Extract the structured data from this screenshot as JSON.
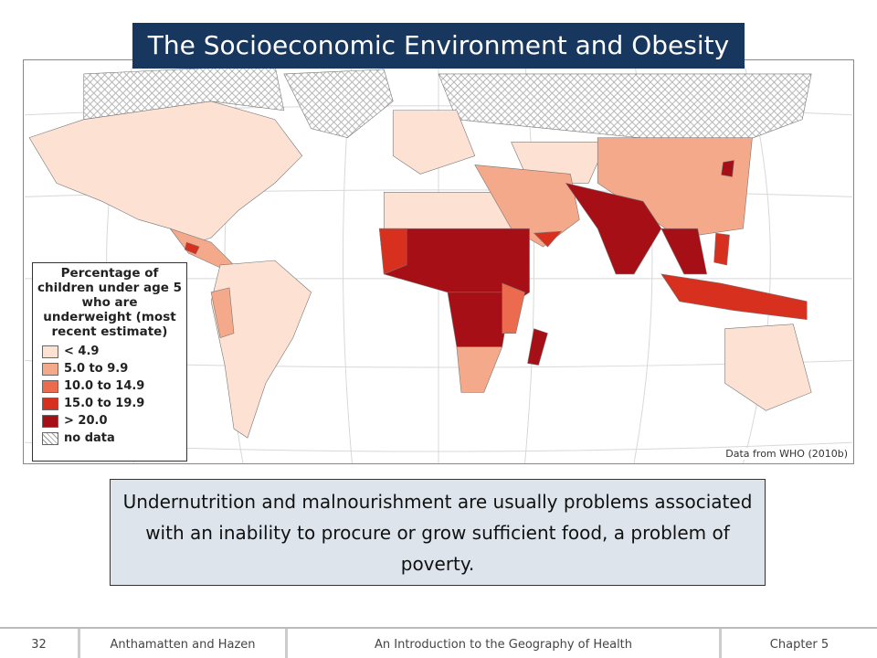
{
  "header": {
    "title": "The Socioeconomic Environment and Obesity"
  },
  "legend": {
    "title": "Percentage of children under age 5 who are underweight (most recent estimate)",
    "items": [
      {
        "label": "< 4.9",
        "color": "#fde2d4"
      },
      {
        "label": "5.0 to 9.9",
        "color": "#f4a98a"
      },
      {
        "label": "10.0 to 14.9",
        "color": "#ec6a4e"
      },
      {
        "label": "15.0 to 19.9",
        "color": "#d7301f"
      },
      {
        "label": "> 20.0",
        "color": "#a50f15"
      },
      {
        "label": "no data"
      }
    ]
  },
  "source": "Data from WHO (2010b)",
  "caption": "Undernutrition and malnourishment are usually problems associated with an inability to procure or grow sufficient food, a problem of poverty.",
  "footer": {
    "page": "32",
    "authors": "Anthamatten and Hazen",
    "book": "An Introduction to the Geography of Health",
    "chapter": "Chapter 5"
  }
}
